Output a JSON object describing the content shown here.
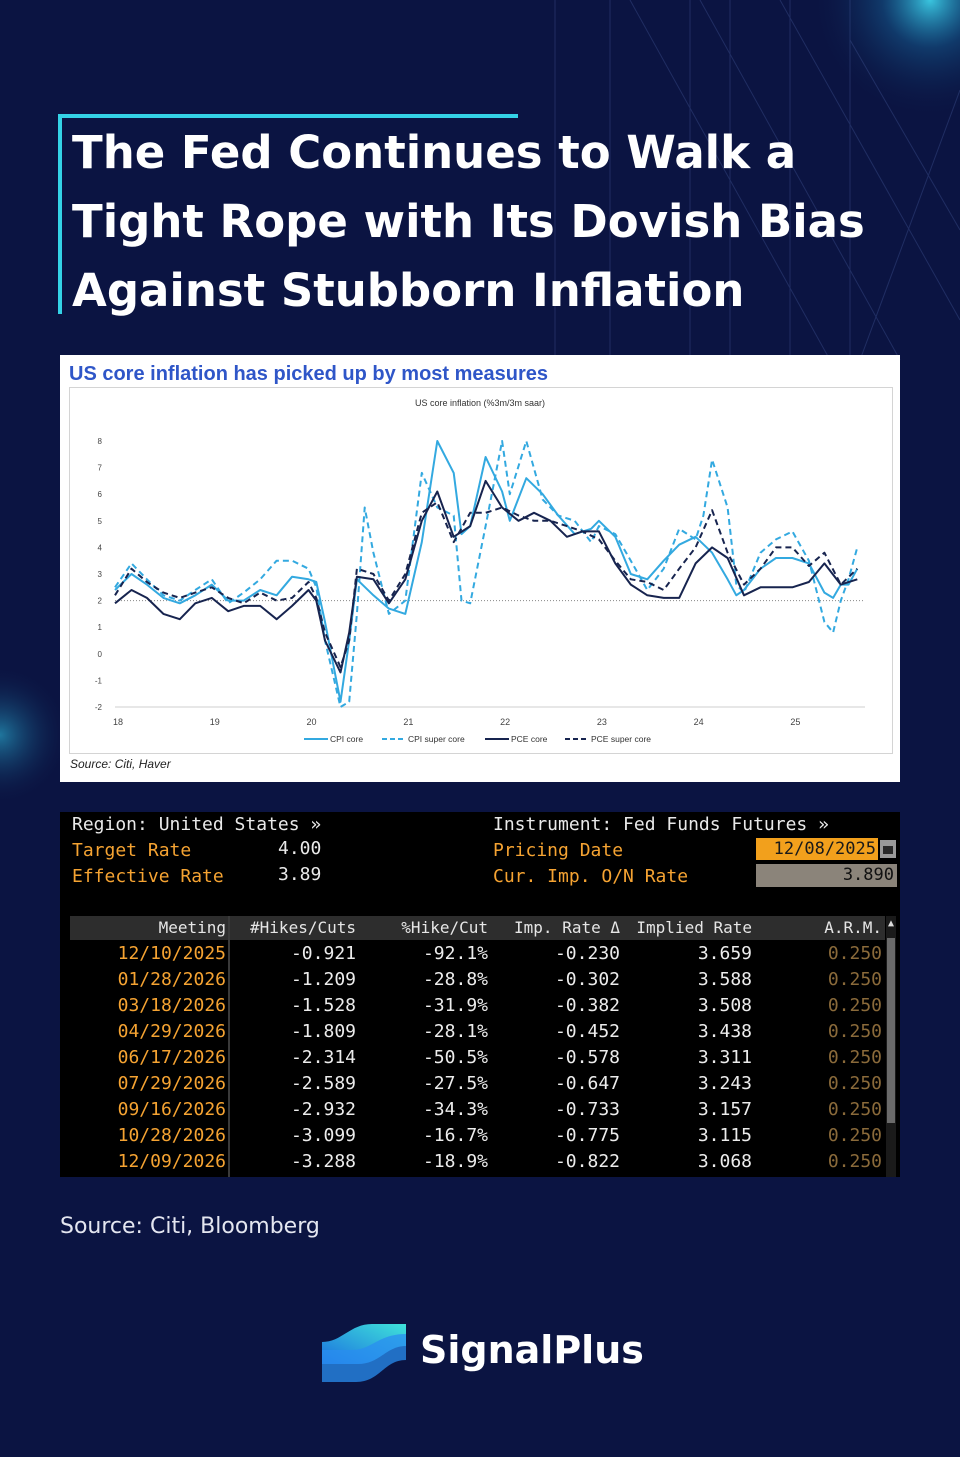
{
  "title": "The Fed Continues to Walk a Tight Rope with Its Dovish Bias Against Stubborn Inflation",
  "colors": {
    "background": "#0b1442",
    "accent": "#34d2e6",
    "cpi": "#33a9e0",
    "pce": "#17244f",
    "bloomberg_orange": "#f5a332"
  },
  "chart_panel": {
    "heading": "US core inflation has picked up by most measures",
    "source": "Source: Citi, Haver"
  },
  "chart_data": {
    "type": "line",
    "title": "US core inflation (%3m/3m saar)",
    "xlabel": "",
    "ylabel": "",
    "x_ticks": [
      "18",
      "19",
      "20",
      "21",
      "22",
      "23",
      "24",
      "25"
    ],
    "y_ticks": [
      "8",
      "7",
      "6",
      "5",
      "4",
      "3",
      "2",
      "1",
      "0",
      "-1",
      "-2"
    ],
    "xlim": [
      2018.0,
      2025.75
    ],
    "ylim": [
      -2,
      8
    ],
    "reference_line": 2,
    "grid": false,
    "legend_position": "bottom",
    "series": [
      {
        "name": "CPI core",
        "style": "solid",
        "color": "#33a9e0",
        "x": [
          2018.0,
          2018.17,
          2018.33,
          2018.5,
          2018.67,
          2018.83,
          2019.0,
          2019.17,
          2019.33,
          2019.5,
          2019.67,
          2019.83,
          2020.0,
          2020.08,
          2020.17,
          2020.33,
          2020.42,
          2020.5,
          2020.67,
          2020.83,
          2021.0,
          2021.17,
          2021.33,
          2021.5,
          2021.58,
          2021.67,
          2021.83,
          2022.0,
          2022.08,
          2022.25,
          2022.42,
          2022.58,
          2022.75,
          2022.92,
          2023.0,
          2023.17,
          2023.33,
          2023.5,
          2023.67,
          2023.83,
          2024.0,
          2024.17,
          2024.33,
          2024.42,
          2024.5,
          2024.67,
          2024.83,
          2025.0,
          2025.17,
          2025.33,
          2025.42,
          2025.5,
          2025.58,
          2025.67
        ],
        "y": [
          2.4,
          3.0,
          2.6,
          2.1,
          1.9,
          2.2,
          2.6,
          2.0,
          2.0,
          2.4,
          2.2,
          2.9,
          2.8,
          2.7,
          1.2,
          -1.8,
          0.5,
          2.8,
          2.2,
          1.7,
          1.5,
          4.2,
          8.0,
          6.8,
          4.5,
          4.8,
          7.4,
          6.1,
          5.0,
          6.6,
          6.0,
          5.2,
          4.5,
          4.7,
          5.0,
          4.4,
          3.0,
          2.8,
          3.5,
          4.1,
          4.4,
          3.8,
          2.8,
          2.2,
          2.4,
          3.2,
          3.6,
          3.6,
          3.4,
          2.3,
          2.1,
          2.6,
          2.6,
          3.2
        ]
      },
      {
        "name": "CPI super core",
        "style": "dashed",
        "color": "#33a9e0",
        "x": [
          2018.0,
          2018.17,
          2018.33,
          2018.5,
          2018.67,
          2018.83,
          2019.0,
          2019.17,
          2019.33,
          2019.5,
          2019.67,
          2019.83,
          2020.0,
          2020.08,
          2020.17,
          2020.33,
          2020.42,
          2020.5,
          2020.58,
          2020.67,
          2020.83,
          2021.0,
          2021.17,
          2021.33,
          2021.5,
          2021.58,
          2021.67,
          2021.83,
          2022.0,
          2022.08,
          2022.25,
          2022.42,
          2022.58,
          2022.75,
          2022.92,
          2023.0,
          2023.17,
          2023.33,
          2023.5,
          2023.67,
          2023.83,
          2024.0,
          2024.08,
          2024.17,
          2024.33,
          2024.42,
          2024.5,
          2024.67,
          2024.83,
          2025.0,
          2025.17,
          2025.33,
          2025.42,
          2025.5,
          2025.58,
          2025.67
        ],
        "y": [
          2.5,
          3.4,
          2.8,
          2.2,
          2.0,
          2.4,
          2.8,
          1.9,
          2.3,
          2.8,
          3.5,
          3.5,
          3.2,
          2.5,
          0.5,
          -2.0,
          -1.8,
          1.5,
          5.5,
          3.8,
          1.5,
          2.0,
          6.8,
          5.5,
          5.2,
          2.0,
          1.9,
          4.8,
          8.0,
          6.0,
          8.0,
          5.8,
          5.2,
          5.0,
          4.2,
          4.8,
          4.5,
          3.5,
          2.4,
          3.2,
          4.7,
          4.3,
          5.2,
          7.3,
          5.5,
          2.6,
          2.3,
          3.8,
          4.3,
          4.6,
          3.5,
          1.2,
          0.8,
          2.0,
          2.8,
          4.0
        ]
      },
      {
        "name": "PCE core",
        "style": "solid",
        "color": "#17244f",
        "x": [
          2018.0,
          2018.17,
          2018.33,
          2018.5,
          2018.67,
          2018.83,
          2019.0,
          2019.17,
          2019.33,
          2019.5,
          2019.67,
          2019.83,
          2020.0,
          2020.08,
          2020.17,
          2020.33,
          2020.42,
          2020.5,
          2020.67,
          2020.83,
          2021.0,
          2021.17,
          2021.33,
          2021.5,
          2021.67,
          2021.83,
          2022.0,
          2022.17,
          2022.33,
          2022.5,
          2022.67,
          2022.83,
          2023.0,
          2023.17,
          2023.33,
          2023.5,
          2023.67,
          2023.83,
          2024.0,
          2024.17,
          2024.33,
          2024.5,
          2024.67,
          2024.83,
          2025.0,
          2025.17,
          2025.33,
          2025.5,
          2025.67
        ],
        "y": [
          1.9,
          2.4,
          2.1,
          1.5,
          1.3,
          1.9,
          2.1,
          1.6,
          1.8,
          1.8,
          1.3,
          1.8,
          2.4,
          2.0,
          0.5,
          -0.7,
          0.8,
          2.9,
          2.8,
          1.9,
          2.8,
          5.0,
          6.1,
          4.4,
          4.8,
          6.5,
          5.5,
          5.0,
          5.3,
          5.0,
          4.4,
          4.6,
          4.6,
          3.4,
          2.6,
          2.2,
          2.1,
          2.1,
          3.4,
          4.0,
          3.6,
          2.2,
          2.5,
          2.5,
          2.5,
          2.7,
          3.4,
          2.6,
          2.8
        ]
      },
      {
        "name": "PCE super core",
        "style": "dashed",
        "color": "#17244f",
        "x": [
          2018.0,
          2018.17,
          2018.33,
          2018.5,
          2018.67,
          2018.83,
          2019.0,
          2019.17,
          2019.33,
          2019.5,
          2019.67,
          2019.83,
          2020.0,
          2020.08,
          2020.17,
          2020.33,
          2020.42,
          2020.5,
          2020.67,
          2020.83,
          2021.0,
          2021.17,
          2021.33,
          2021.5,
          2021.67,
          2021.83,
          2022.0,
          2022.17,
          2022.33,
          2022.5,
          2022.67,
          2022.83,
          2023.0,
          2023.17,
          2023.33,
          2023.5,
          2023.67,
          2023.83,
          2024.0,
          2024.17,
          2024.33,
          2024.5,
          2024.67,
          2024.83,
          2025.0,
          2025.17,
          2025.33,
          2025.5,
          2025.67
        ],
        "y": [
          2.2,
          3.2,
          2.7,
          2.3,
          2.1,
          2.3,
          2.5,
          2.1,
          1.9,
          2.3,
          2.0,
          2.1,
          2.7,
          2.1,
          0.8,
          -0.5,
          0.5,
          3.2,
          3.0,
          2.0,
          3.0,
          5.3,
          5.7,
          4.2,
          5.3,
          5.3,
          5.5,
          5.2,
          5.0,
          5.0,
          4.8,
          4.6,
          4.3,
          3.5,
          2.8,
          2.7,
          2.4,
          3.2,
          4.0,
          5.4,
          3.8,
          2.6,
          3.2,
          4.0,
          4.0,
          3.3,
          3.8,
          2.6,
          3.2
        ]
      }
    ]
  },
  "bloomberg": {
    "region_label": "Region: United States »",
    "instrument_label": "Instrument: Fed Funds Futures »",
    "target_rate_label": "Target Rate",
    "target_rate_value": "4.00",
    "effective_rate_label": "Effective Rate",
    "effective_rate_value": "3.89",
    "pricing_date_label": "Pricing Date",
    "pricing_date_value": "12/08/2025",
    "cur_rate_label": "Cur. Imp. O/N Rate",
    "cur_rate_value": "3.890",
    "columns": [
      "Meeting",
      "#Hikes/Cuts",
      "%Hike/Cut",
      "Imp. Rate Δ",
      "Implied Rate",
      "A.R.M."
    ],
    "rows": [
      [
        "12/10/2025",
        "-0.921",
        "-92.1%",
        "-0.230",
        "3.659",
        "0.250"
      ],
      [
        "01/28/2026",
        "-1.209",
        "-28.8%",
        "-0.302",
        "3.588",
        "0.250"
      ],
      [
        "03/18/2026",
        "-1.528",
        "-31.9%",
        "-0.382",
        "3.508",
        "0.250"
      ],
      [
        "04/29/2026",
        "-1.809",
        "-28.1%",
        "-0.452",
        "3.438",
        "0.250"
      ],
      [
        "06/17/2026",
        "-2.314",
        "-50.5%",
        "-0.578",
        "3.311",
        "0.250"
      ],
      [
        "07/29/2026",
        "-2.589",
        "-27.5%",
        "-0.647",
        "3.243",
        "0.250"
      ],
      [
        "09/16/2026",
        "-2.932",
        "-34.3%",
        "-0.733",
        "3.157",
        "0.250"
      ],
      [
        "10/28/2026",
        "-3.099",
        "-16.7%",
        "-0.775",
        "3.115",
        "0.250"
      ],
      [
        "12/09/2026",
        "-3.288",
        "-18.9%",
        "-0.822",
        "3.068",
        "0.250"
      ]
    ]
  },
  "source": "Source: Citi, Bloomberg",
  "brand": {
    "name": "SignalPlus",
    "logo_icon": "signalplus-logo-icon"
  }
}
